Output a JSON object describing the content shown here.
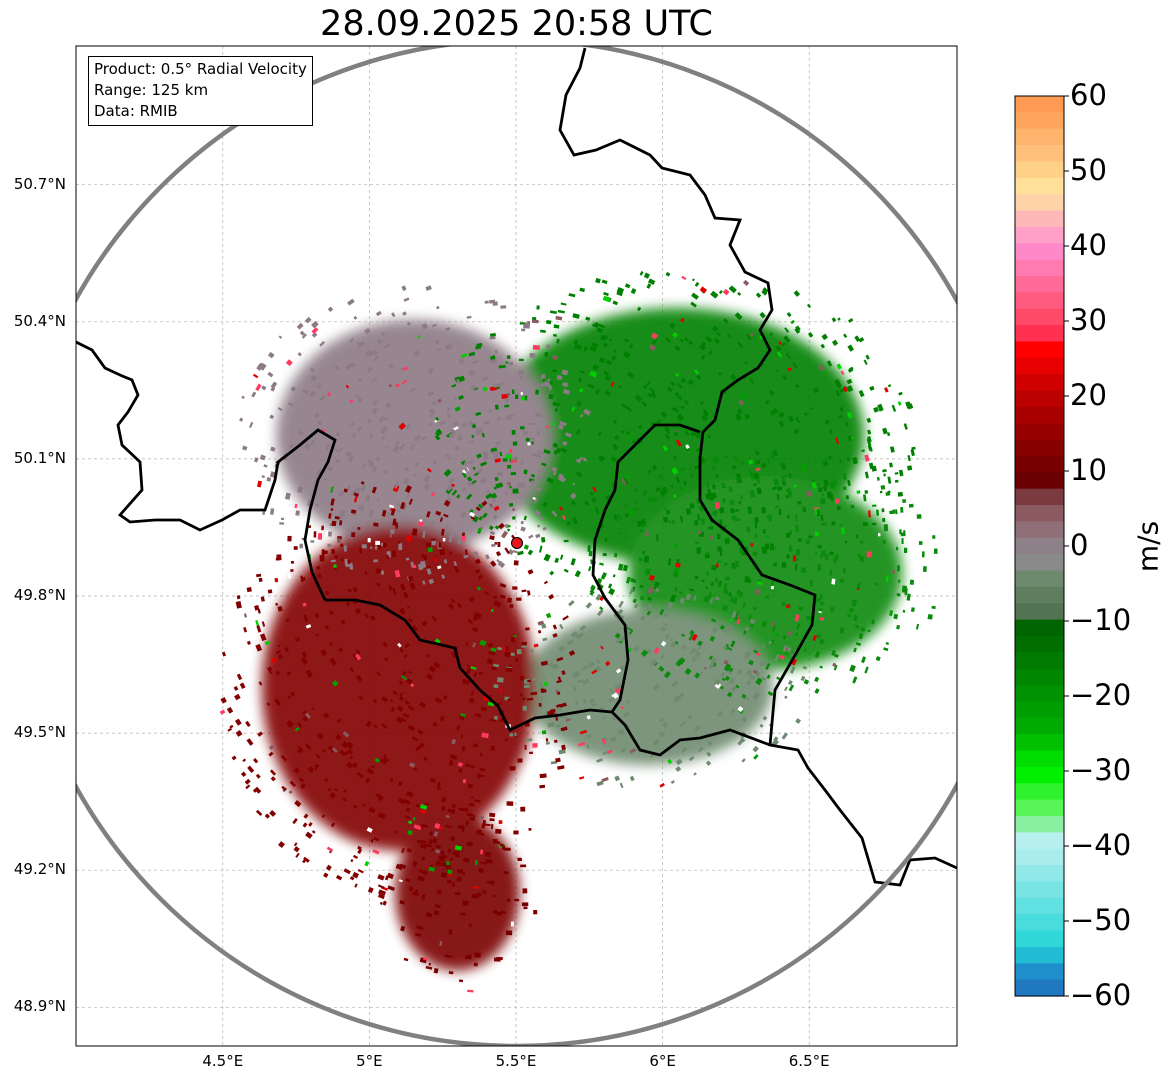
{
  "title": "28.09.2025 20:58 UTC",
  "info_box": {
    "product": "Product: 0.5° Radial Velocity",
    "range": "Range: 125 km",
    "data": "Data: RMIB"
  },
  "map": {
    "lon_range": [
      4.0,
      7.0
    ],
    "lat_range": [
      48.8,
      50.98
    ],
    "lat_ticks": [
      {
        "value": 50.7,
        "label": "50.7°N"
      },
      {
        "value": 50.4,
        "label": "50.4°N"
      },
      {
        "value": 50.1,
        "label": "50.1°N"
      },
      {
        "value": 49.8,
        "label": "49.8°N"
      },
      {
        "value": 49.5,
        "label": "49.5°N"
      },
      {
        "value": 49.2,
        "label": "49.2°N"
      },
      {
        "value": 48.9,
        "label": "48.9°N"
      }
    ],
    "lon_ticks": [
      {
        "value": 4.5,
        "label": "4.5°E"
      },
      {
        "value": 5.0,
        "label": "5°E"
      },
      {
        "value": 5.5,
        "label": "5.5°E"
      },
      {
        "value": 6.0,
        "label": "6°E"
      },
      {
        "value": 6.5,
        "label": "6.5°E"
      }
    ],
    "radar_site": {
      "lon": 5.506,
      "lat": 49.914
    },
    "range_km": 125,
    "range_ring_color": "#808080",
    "border_color": "#000000",
    "grid_color": "#b0b0b0",
    "site_marker_color": "#e8141c"
  },
  "colorbar": {
    "unit": "m/s",
    "min": -60,
    "max": 60,
    "ticks": [
      {
        "value": 60,
        "label": "60"
      },
      {
        "value": 50,
        "label": "50"
      },
      {
        "value": 40,
        "label": "40"
      },
      {
        "value": 30,
        "label": "30"
      },
      {
        "value": 20,
        "label": "20"
      },
      {
        "value": 10,
        "label": "10"
      },
      {
        "value": 0,
        "label": "0"
      },
      {
        "value": -10,
        "label": "−10"
      },
      {
        "value": -20,
        "label": "−20"
      },
      {
        "value": -30,
        "label": "−30"
      },
      {
        "value": -40,
        "label": "−40"
      },
      {
        "value": -50,
        "label": "−50"
      },
      {
        "value": -60,
        "label": "−60"
      }
    ],
    "colors_top_to_bottom": [
      "#ff9a52",
      "#ffa65e",
      "#ffb46e",
      "#ffc07a",
      "#ffd088",
      "#ffe098",
      "#ffd3a8",
      "#ffb8b8",
      "#ffa0c8",
      "#ff88c8",
      "#ff7ab0",
      "#ff6a98",
      "#ff5a80",
      "#ff4a6a",
      "#ff3050",
      "#ff0000",
      "#e60000",
      "#d00000",
      "#bb0000",
      "#a80000",
      "#980000",
      "#880000",
      "#780000",
      "#6a0000",
      "#7a3a40",
      "#8a5a60",
      "#907078",
      "#8e8088",
      "#8a8a8a",
      "#6e8a6e",
      "#5e7e5e",
      "#527452",
      "#006400",
      "#006e00",
      "#007a00",
      "#008600",
      "#009200",
      "#009e00",
      "#00aa00",
      "#00c000",
      "#00dc00",
      "#00f000",
      "#2ef22e",
      "#58f458",
      "#88f0a0",
      "#b8f0f0",
      "#a8ecec",
      "#90e8e8",
      "#78e4e4",
      "#60e0e0",
      "#48dcdc",
      "#30d8d8",
      "#22bcd4",
      "#1f8fcc",
      "#1f78c0"
    ]
  },
  "echo_regions": [
    {
      "name": "inbound-green-northeast",
      "color": "#008000",
      "center_lon": 6.05,
      "center_lat": 50.15,
      "rx_deg": 0.75,
      "ry_deg": 0.33
    },
    {
      "name": "inbound-green-east",
      "color": "#0a8a0a",
      "center_lon": 6.35,
      "center_lat": 49.85,
      "rx_deg": 0.55,
      "ry_deg": 0.25
    },
    {
      "name": "nearzero-grey-northwest",
      "color": "#8c7a84",
      "center_lon": 5.15,
      "center_lat": 50.15,
      "rx_deg": 0.55,
      "ry_deg": 0.3
    },
    {
      "name": "nearzero-grey-southeast",
      "color": "#708a70",
      "center_lon": 5.95,
      "center_lat": 49.6,
      "rx_deg": 0.5,
      "ry_deg": 0.2
    },
    {
      "name": "outbound-darkred-southwest",
      "color": "#820000",
      "center_lon": 5.1,
      "center_lat": 49.6,
      "rx_deg": 0.55,
      "ry_deg": 0.42
    },
    {
      "name": "outbound-darkred-south",
      "color": "#7a0000",
      "center_lon": 5.3,
      "center_lat": 49.15,
      "rx_deg": 0.25,
      "ry_deg": 0.2
    }
  ]
}
